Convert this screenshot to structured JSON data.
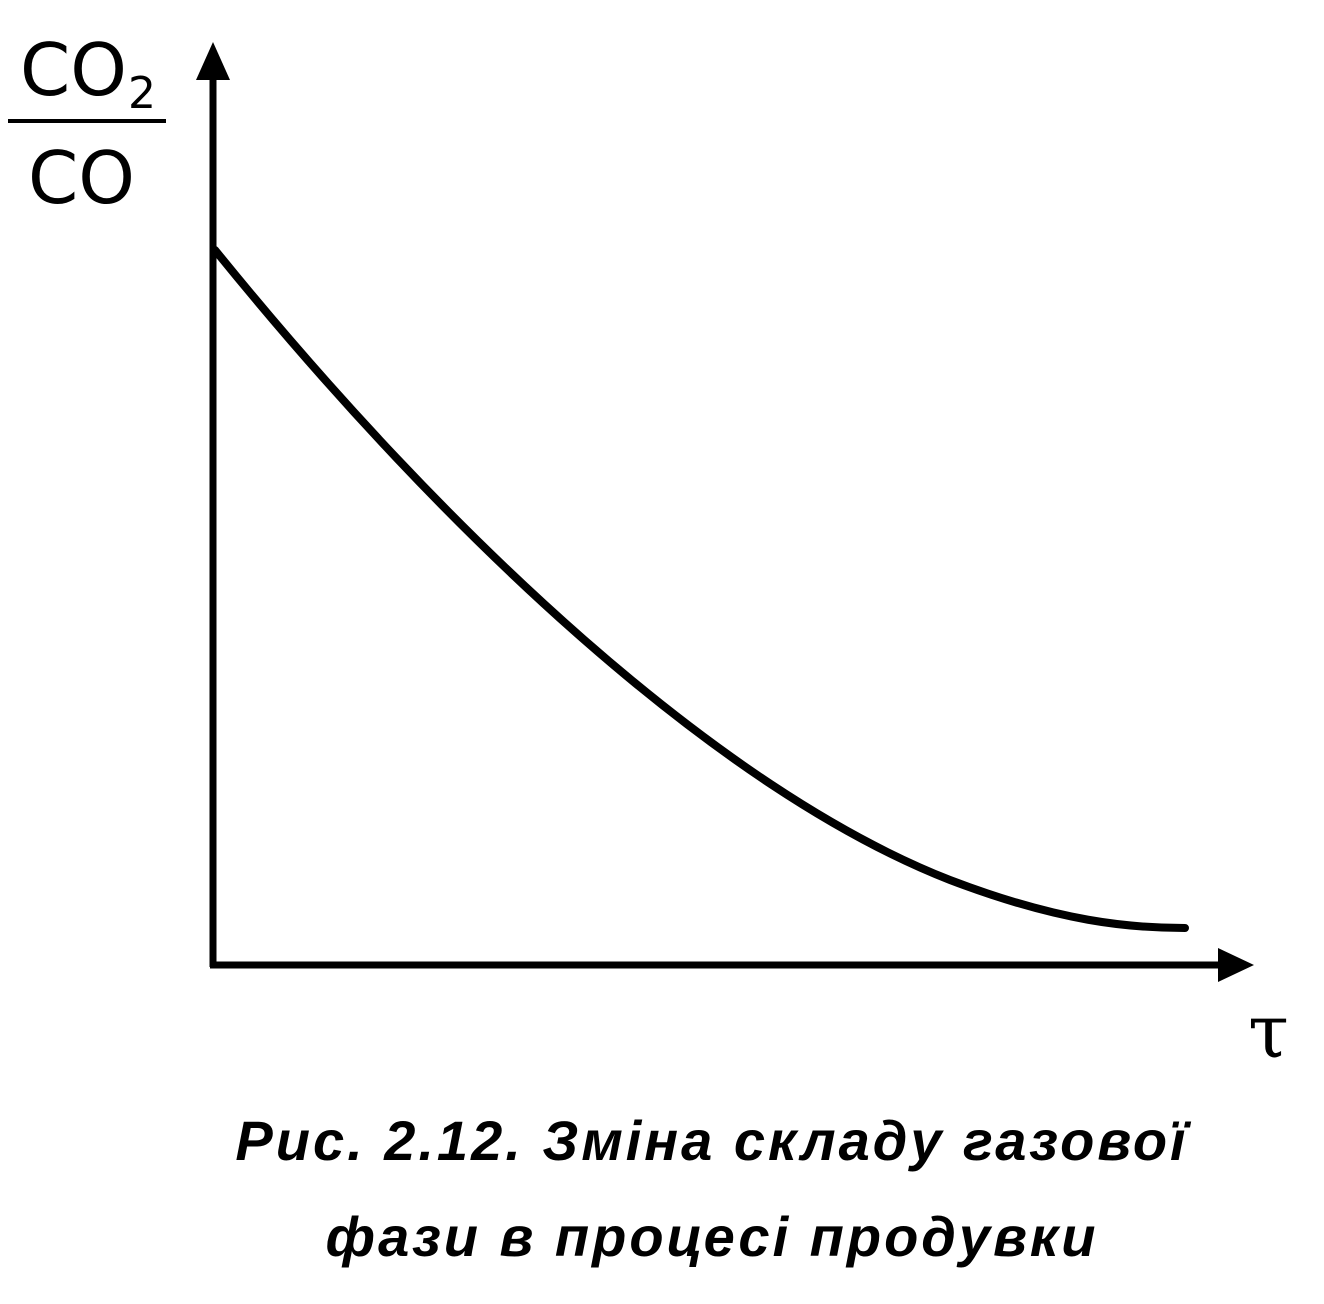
{
  "y_axis_label": {
    "numerator": "CO",
    "numerator_subscript": "2",
    "denominator": "CO"
  },
  "x_axis_label": "τ",
  "caption": {
    "line1": "Рис. 2.12. Зміна складу газової",
    "line2": "фази в процесі продувки"
  }
}
